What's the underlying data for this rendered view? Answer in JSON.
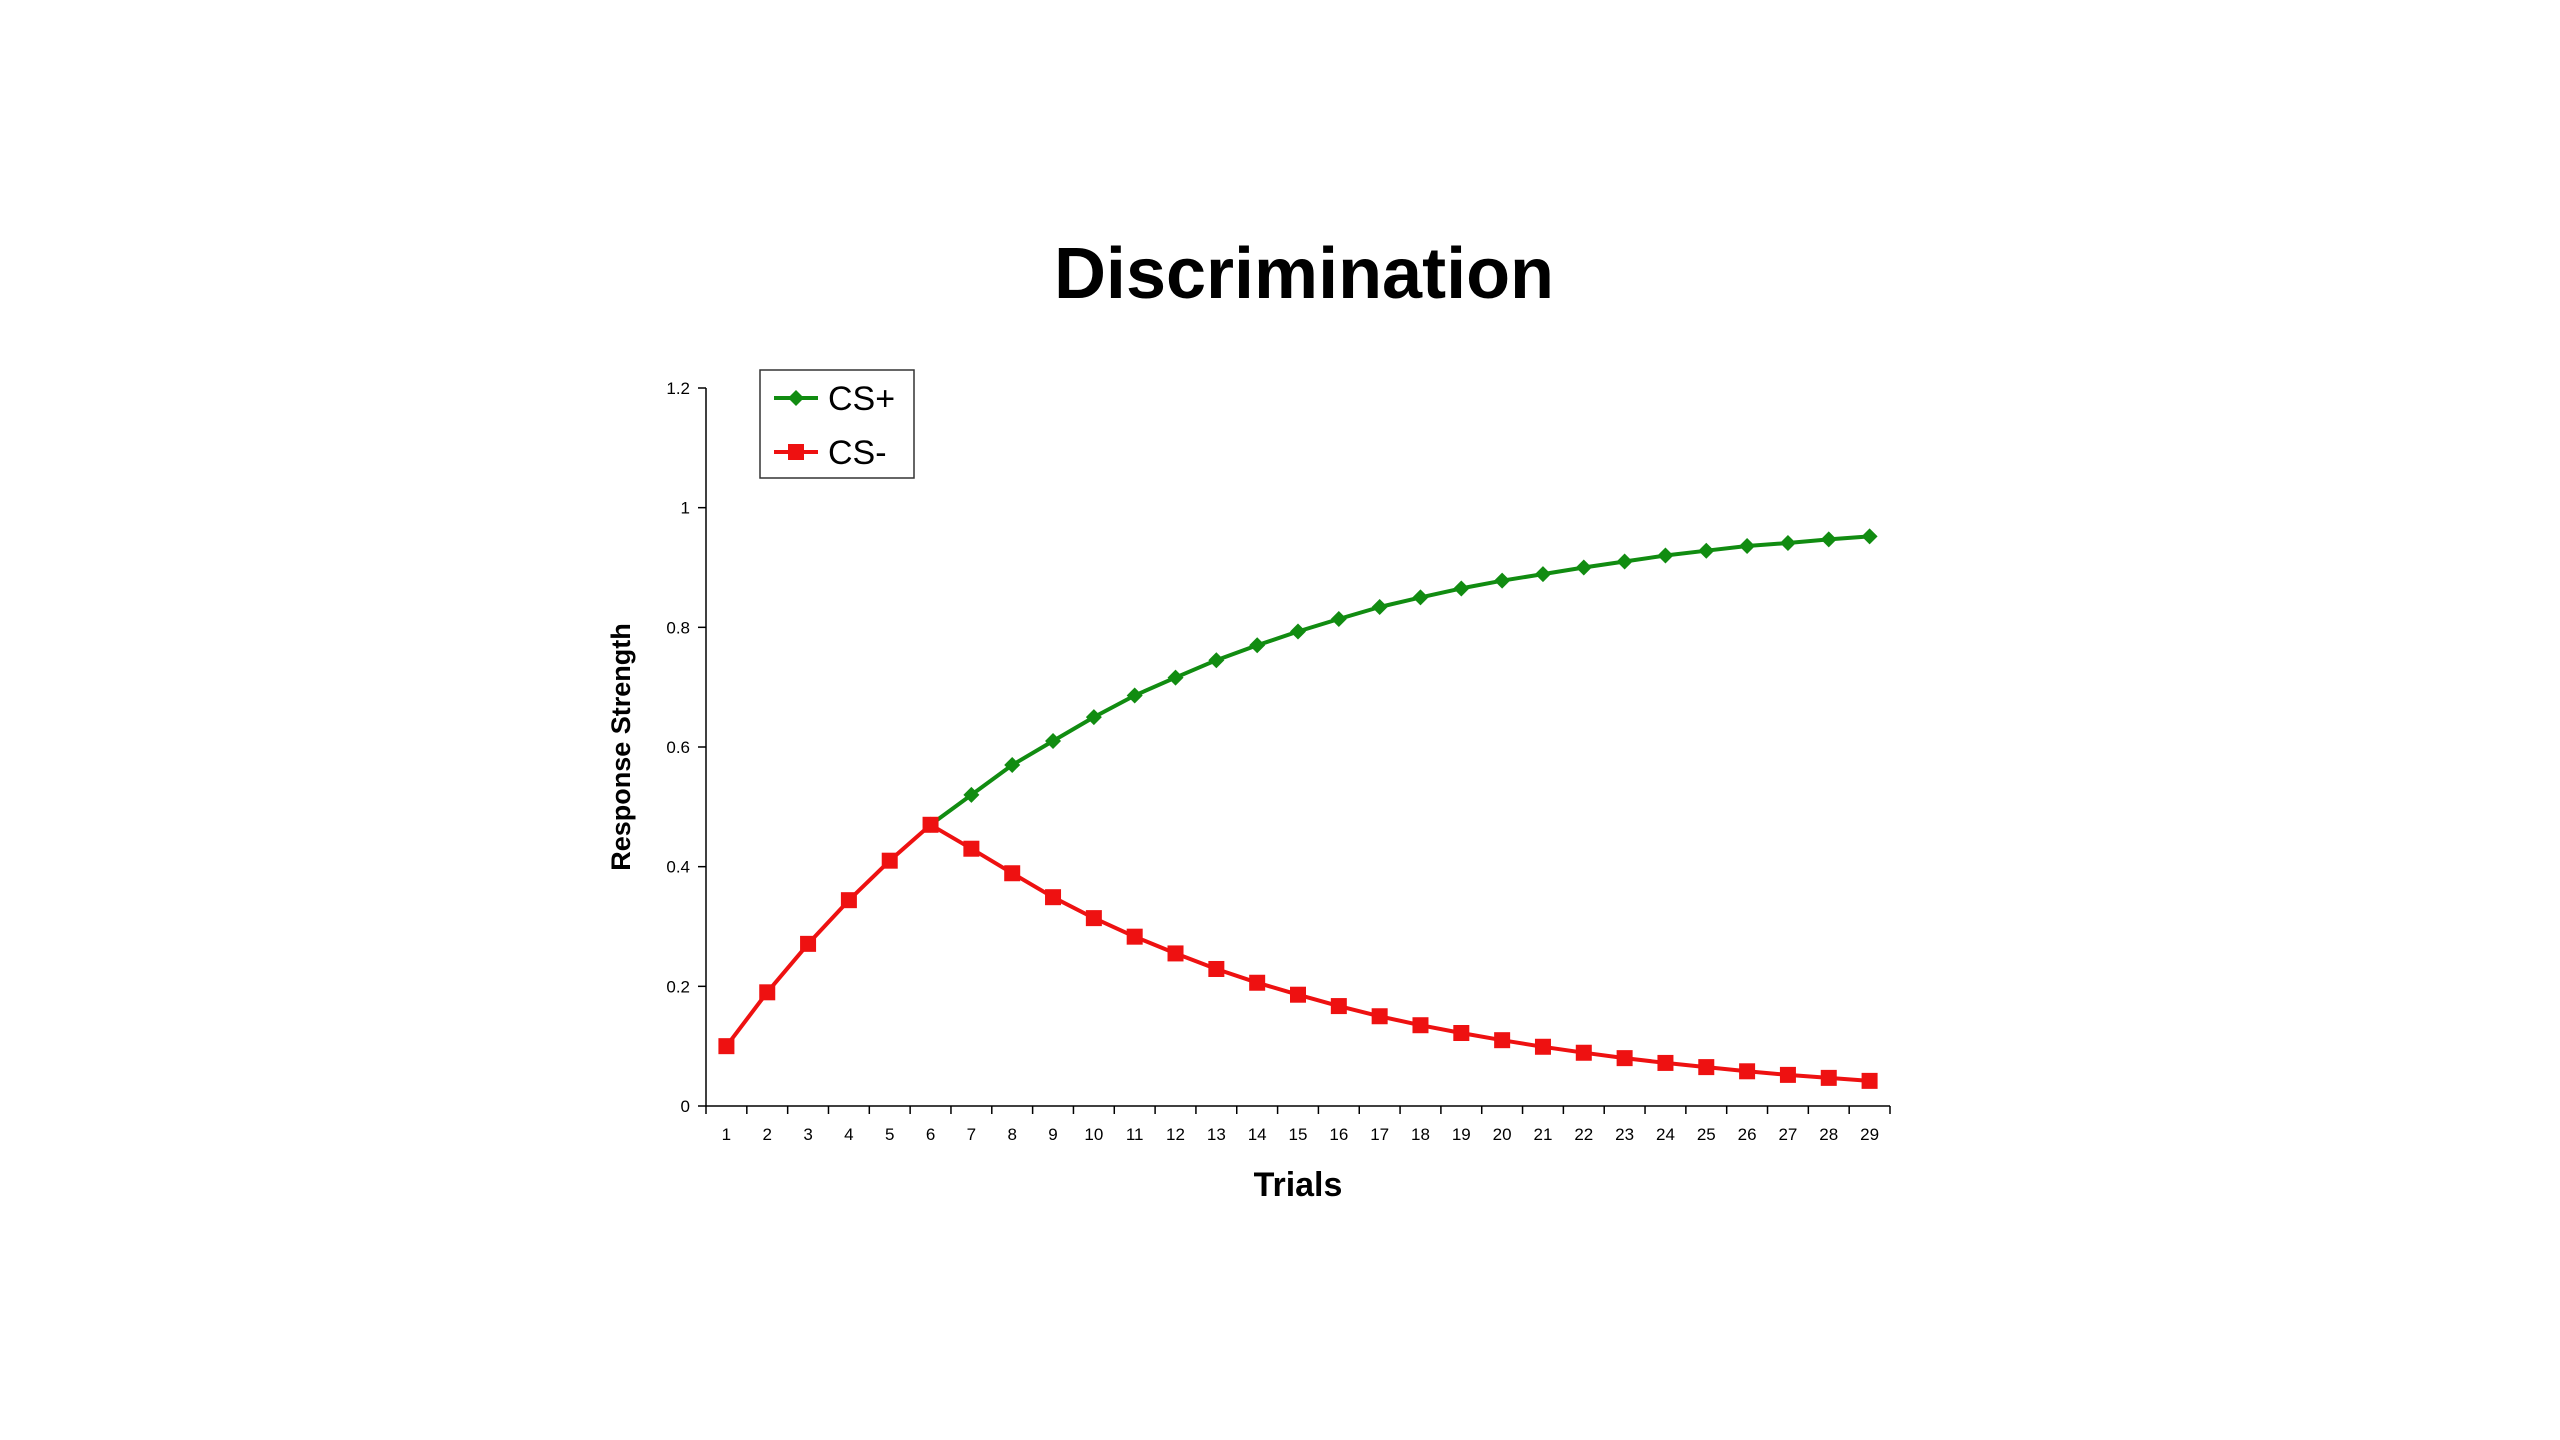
{
  "chart_data": {
    "type": "line",
    "title": "Discrimination",
    "xlabel": "Trials",
    "ylabel": "Response Strength",
    "x": [
      1,
      2,
      3,
      4,
      5,
      6,
      7,
      8,
      9,
      10,
      11,
      12,
      13,
      14,
      15,
      16,
      17,
      18,
      19,
      20,
      21,
      22,
      23,
      24,
      25,
      26,
      27,
      28,
      29
    ],
    "ylim": [
      0,
      1.2
    ],
    "yticks": [
      "0",
      "0.2",
      "0.4",
      "0.6",
      "0.8",
      "1",
      "1.2"
    ],
    "grid": false,
    "legend": "top-left",
    "series": [
      {
        "name": "CS+",
        "color": "#118c11",
        "marker": "diamond",
        "x": [
          6,
          7,
          8,
          9,
          10,
          11,
          12,
          13,
          14,
          15,
          16,
          17,
          18,
          19,
          20,
          21,
          22,
          23,
          24,
          25,
          26,
          27,
          28,
          29
        ],
        "values": [
          0.47,
          0.52,
          0.57,
          0.61,
          0.65,
          0.686,
          0.716,
          0.745,
          0.77,
          0.793,
          0.814,
          0.834,
          0.85,
          0.865,
          0.878,
          0.889,
          0.9,
          0.91,
          0.92,
          0.928,
          0.936,
          0.941,
          0.947,
          0.952
        ]
      },
      {
        "name": "CS-",
        "color": "#ee1111",
        "marker": "square",
        "x": [
          1,
          2,
          3,
          4,
          5,
          6,
          7,
          8,
          9,
          10,
          11,
          12,
          13,
          14,
          15,
          16,
          17,
          18,
          19,
          20,
          21,
          22,
          23,
          24,
          25,
          26,
          27,
          28,
          29
        ],
        "values": [
          0.1,
          0.19,
          0.271,
          0.344,
          0.41,
          0.47,
          0.43,
          0.389,
          0.349,
          0.314,
          0.283,
          0.255,
          0.229,
          0.206,
          0.186,
          0.167,
          0.15,
          0.135,
          0.122,
          0.11,
          0.099,
          0.089,
          0.08,
          0.072,
          0.065,
          0.058,
          0.052,
          0.047,
          0.042
        ]
      }
    ]
  }
}
